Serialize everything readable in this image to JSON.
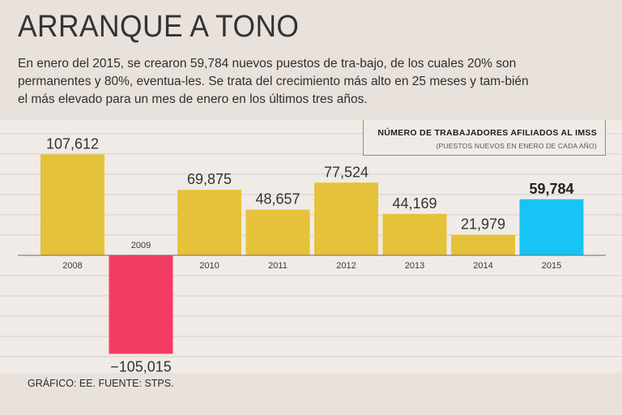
{
  "header": {
    "title": "ARRANQUE A TONO",
    "subtitle": "En enero del 2015, se crearon 59,784 nuevos puestos de tra-bajo, de los cuales 20% son permanentes y 80%, eventua-les. Se trata del crecimiento más alto en 25 meses y tam-bién el más elevado para un mes de enero en los últimos tres años."
  },
  "legend": {
    "title": "NÚMERO DE TRABAJADORES AFILIADOS AL IMSS",
    "subtitle": "(PUESTOS NUEVOS EN ENERO DE CADA AÑO)"
  },
  "footer": {
    "source": "GRÁFICO: EE. FUENTE: STPS."
  },
  "colors": {
    "positive": "#e6c23a",
    "negative": "#f23c64",
    "highlight": "#17c4f5"
  },
  "chart_data": {
    "type": "bar",
    "title": "NÚMERO DE TRABAJADORES AFILIADOS AL IMSS",
    "subtitle": "(PUESTOS NUEVOS EN ENERO DE CADA AÑO)",
    "categories": [
      "2008",
      "2009",
      "2010",
      "2011",
      "2012",
      "2013",
      "2014",
      "2015"
    ],
    "values": [
      107612,
      -105015,
      69875,
      48657,
      77524,
      44169,
      21979,
      59784
    ],
    "value_labels": [
      "107,612",
      "−105,015",
      "69,875",
      "48,657",
      "77,524",
      "44,169",
      "21,979",
      "59,784"
    ],
    "highlight_index": 7,
    "xlabel": "",
    "ylabel": "",
    "ylim": [
      -120000,
      150000
    ],
    "grid": true
  }
}
